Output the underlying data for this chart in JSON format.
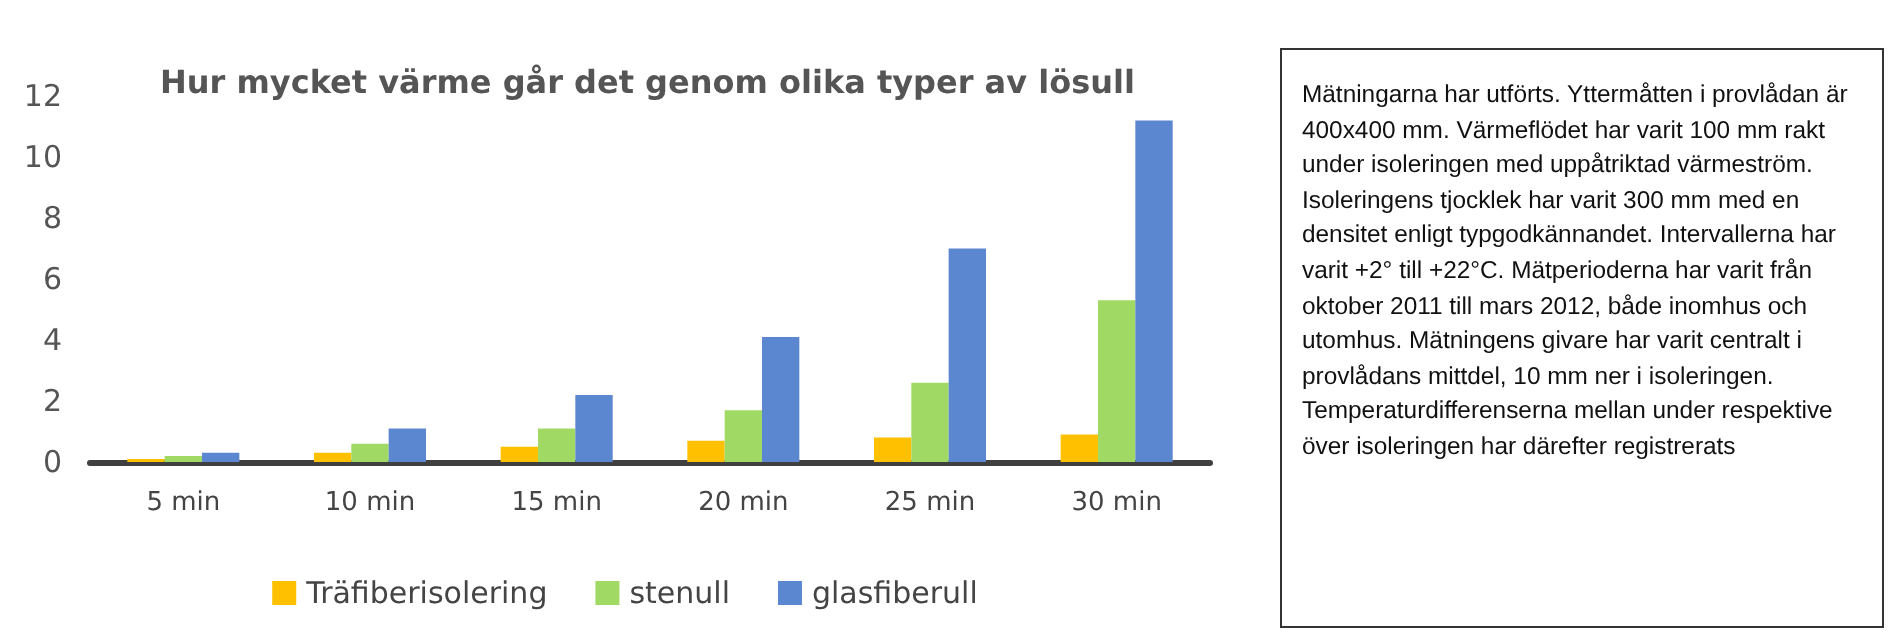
{
  "chart_data": {
    "type": "bar",
    "title": "Hur mycket värme går det genom olika typer av lösull",
    "categories": [
      "5 min",
      "10 min",
      "15 min",
      "20 min",
      "25 min",
      "30 min"
    ],
    "series": [
      {
        "name": "Träfiberisolering",
        "color": "#ffc000",
        "values": [
          0.1,
          0.3,
          0.5,
          0.7,
          0.8,
          0.9
        ]
      },
      {
        "name": "stenull",
        "color": "#a0d964",
        "values": [
          0.2,
          0.6,
          1.1,
          1.7,
          2.6,
          5.3
        ]
      },
      {
        "name": "glasfiberull",
        "color": "#5b86d0",
        "values": [
          0.3,
          1.1,
          2.2,
          4.1,
          7.0,
          11.2
        ]
      }
    ],
    "ylim": [
      0,
      12
    ],
    "yticks": [
      0,
      2,
      4,
      6,
      8,
      10,
      12
    ],
    "grid": false,
    "legend": "bottom",
    "annotations": [
      "Mätningarna har utförts. Yttermåtten i provlådan är 400x400 mm. Värmeflödet har varit 100 mm rakt under isoleringen med uppåtriktad värmeström. Isoleringens tjocklek har varit 300 mm med en densitet enligt typgodkännandet. Intervallerna har varit +2° till +22°C. Mätperioderna har varit från oktober 2011 till mars 2012, både inomhus och utomhus. Mätningens givare har varit centralt i provlådans mittdel, 10 mm ner i isoleringen. Temperaturdifferenserna mellan under respektive över isoleringen har därefter registrerats"
    ]
  }
}
